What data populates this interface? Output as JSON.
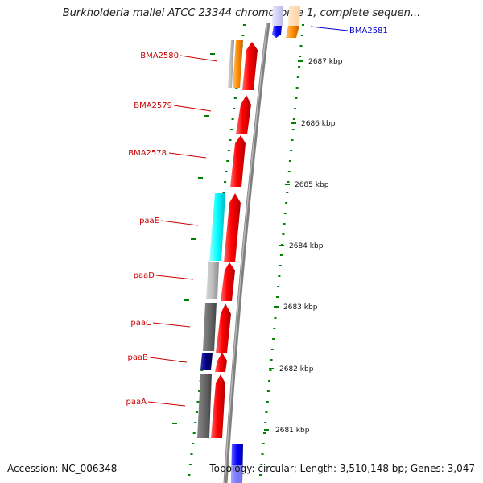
{
  "title": "Burkholderia mallei ATCC 23344 chromosome 1, complete sequen...",
  "accession": "Accession: NC_006348",
  "summary": "Topology: circular; Length: 3,510,148 bp; Genes: 3,047",
  "colors": {
    "gene_red": "#ff0000",
    "gene_orange": "#ff8c00",
    "gene_blue": "#0000ff",
    "gene_cyan": "#00ffff",
    "gene_navy": "#000080",
    "gene_gray": "#888888",
    "backbone": "#808080",
    "dots": "#008000",
    "label_red": "#cc0000",
    "label_blue": "#0000cc"
  },
  "gene_labels": [
    {
      "name": "BMA2581",
      "color": "blue"
    },
    {
      "name": "BMA2580",
      "color": "red"
    },
    {
      "name": "BMA2579",
      "color": "red"
    },
    {
      "name": "BMA2578",
      "color": "red"
    },
    {
      "name": "paaE",
      "color": "red"
    },
    {
      "name": "paaD",
      "color": "red"
    },
    {
      "name": "paaC",
      "color": "red"
    },
    {
      "name": "paaB",
      "color": "red"
    },
    {
      "name": "paaA",
      "color": "red"
    }
  ],
  "kbp_ticks": [
    "2687 kbp",
    "2686 kbp",
    "2685 kbp",
    "2684 kbp",
    "2683 kbp",
    "2682 kbp",
    "2681 kbp"
  ]
}
